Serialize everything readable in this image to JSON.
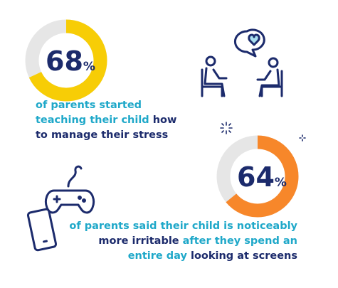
{
  "stats": [
    {
      "value": 68,
      "unit": "%",
      "color": "#f7cd06",
      "lines": [
        [
          {
            "text": "of parents started",
            "color": "#1fa8c9"
          }
        ],
        [
          {
            "text": "teaching their child",
            "color": "#1fa8c9"
          },
          {
            "text": "how",
            "color": "#1c2b6c"
          }
        ],
        [
          {
            "text": "to manage their stress",
            "color": "#1c2b6c"
          }
        ]
      ]
    },
    {
      "value": 64,
      "unit": "%",
      "color": "#f7872a",
      "lines": [
        [
          {
            "text": "of parents said their child is noticeably",
            "color": "#1fa8c9"
          }
        ],
        [
          {
            "text": "more irritable",
            "color": "#1c2b6c"
          },
          {
            "text": "after they spend an",
            "color": "#1fa8c9"
          }
        ],
        [
          {
            "text": "entire day",
            "color": "#1fa8c9"
          },
          {
            "text": "looking at screens",
            "color": "#1c2b6c"
          }
        ]
      ]
    }
  ]
}
